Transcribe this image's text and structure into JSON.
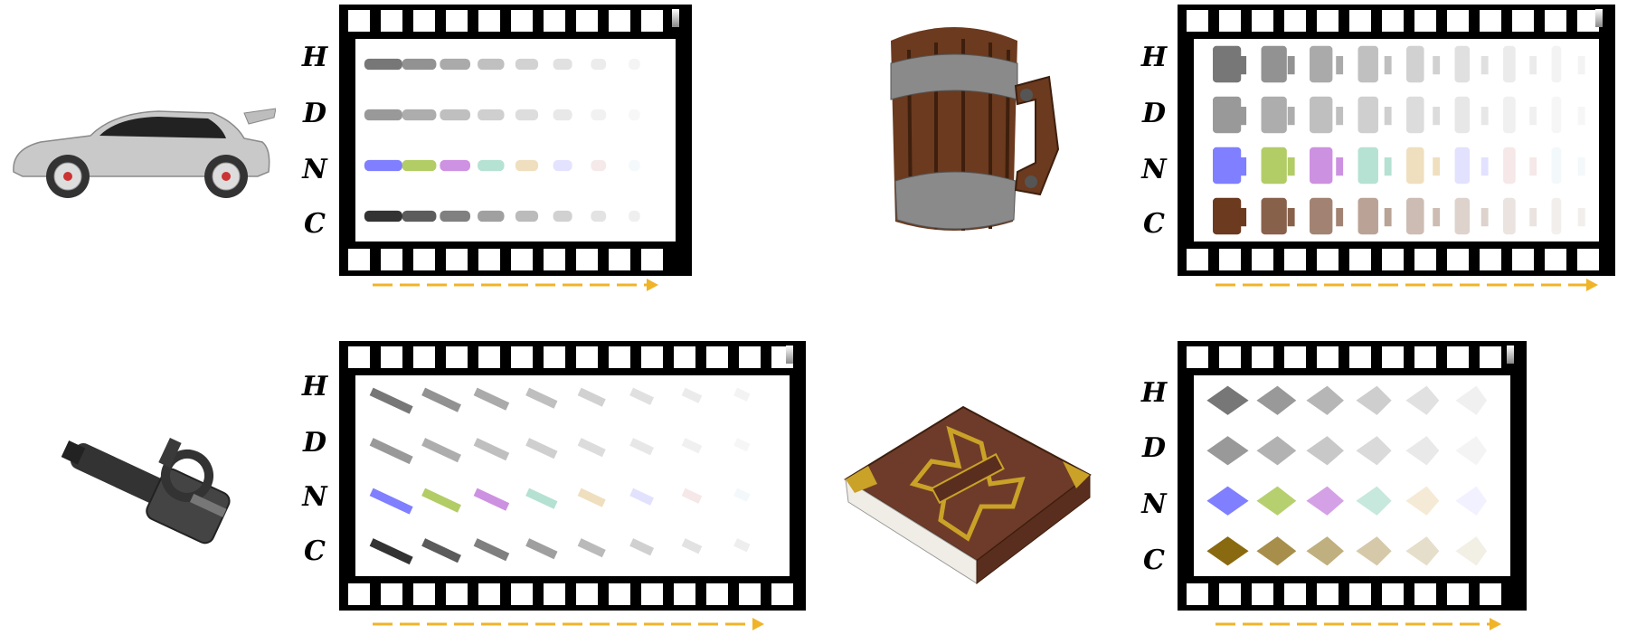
{
  "row_labels": [
    "H",
    "D",
    "N",
    "C"
  ],
  "objects": [
    {
      "name": "car",
      "icon": "car-3d-model"
    },
    {
      "name": "mug",
      "icon": "wooden-mug-3d-model"
    },
    {
      "name": "gun",
      "icon": "minigun-3d-model"
    },
    {
      "name": "book",
      "icon": "book-3d-model"
    }
  ],
  "colors": {
    "film": "#000000",
    "arrow": "#f0b429",
    "normal_blue": "#7f7fff",
    "wood": "#6b3a1f"
  }
}
